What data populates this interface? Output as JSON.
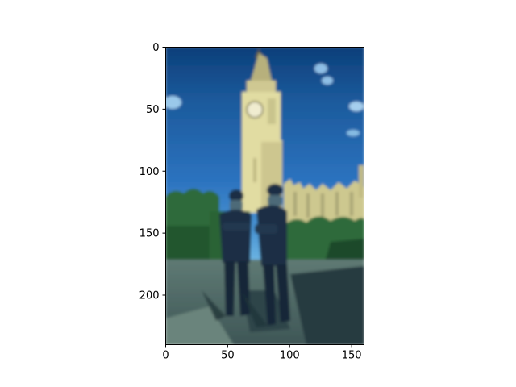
{
  "chart_data": {
    "type": "image",
    "title": "",
    "xlabel": "",
    "ylabel": "",
    "image_extent": {
      "x": [
        0,
        160
      ],
      "y": [
        0,
        240
      ]
    },
    "x_ticks": [
      0,
      50,
      100,
      150
    ],
    "y_ticks": [
      0,
      50,
      100,
      150,
      200
    ],
    "y_axis_inverted": true,
    "image_content": "pixelated photo: Big Ben clock tower (Elizabeth Tower) under blue sky, two police officers in dark uniforms and helmets standing in foreground with arms crossed, green trees, paved plaza",
    "grid": false,
    "legend": "none"
  },
  "colors": {
    "sky_top": "#0c3f7a",
    "sky_mid": "#2c73bf",
    "sky_low": "#63aee0",
    "tower": "#e1dca2",
    "tower_shadow": "#b2ac78",
    "parliament": "#cdc88f",
    "trees": "#2f6b3a",
    "trees_dark": "#1d4a2b",
    "ground": "#4f6a66",
    "ground_dark": "#2e4549",
    "uniform": "#1a2e45",
    "face": "#4d6b78"
  }
}
